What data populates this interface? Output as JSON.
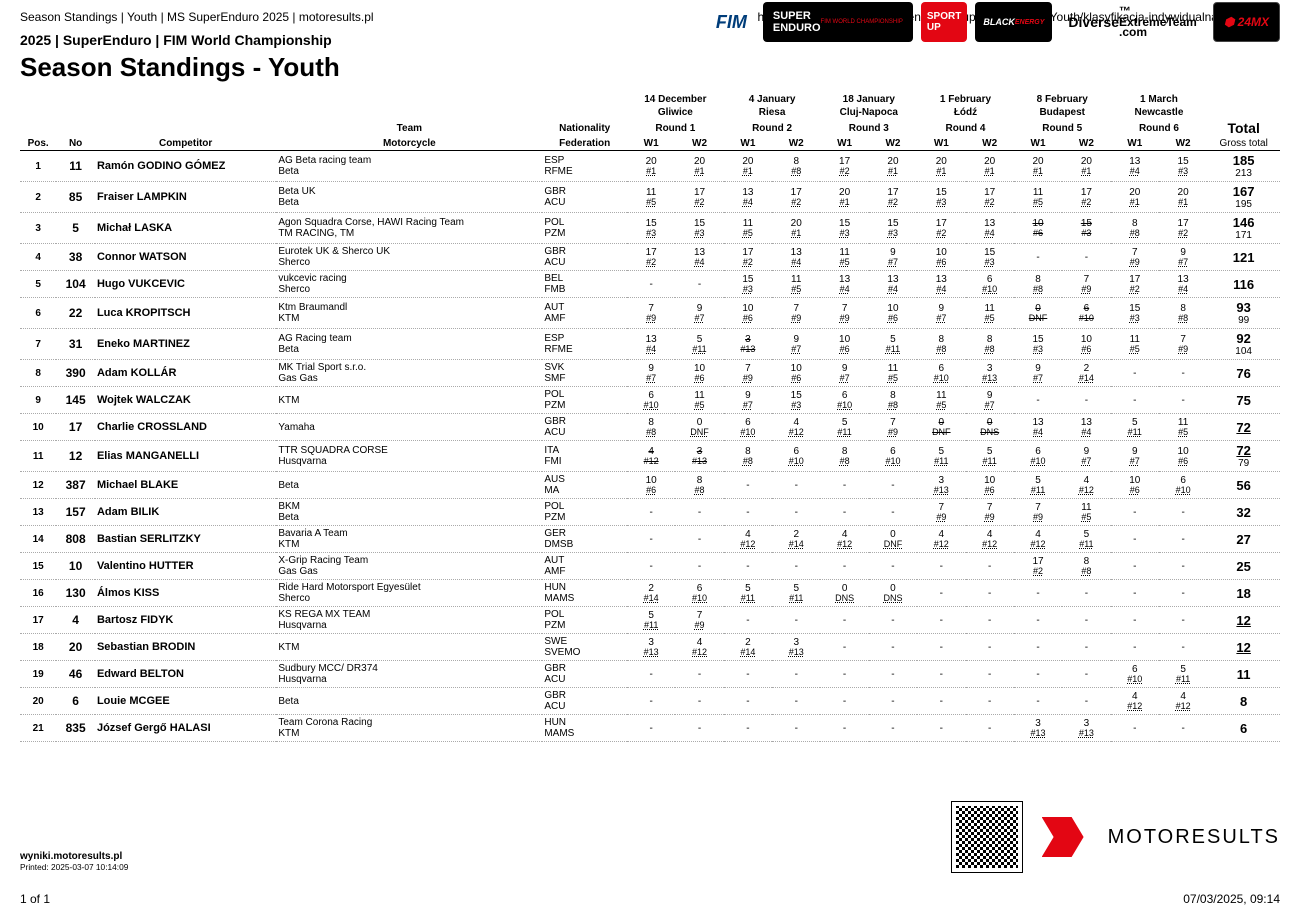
{
  "top": {
    "left": "Season Standings | Youth | MS SuperEnduro 2025 | motoresults.pl",
    "right": "https://wyniki.motoresults.pl/en/2025/SuperEnduro/MS/Youth/klasyfikacja-indywidualna-sezonu/z..."
  },
  "subtitle": "2025 | SuperEnduro | FIM World Championship",
  "title": "Season Standings - Youth",
  "logos": [
    "FIM",
    "SUPER ENDURO",
    "SPORT UP",
    "BLACK ENERGY",
    "Diverse ExtremeTeam .com",
    "24MX"
  ],
  "rounds": [
    {
      "date": "14 December",
      "city": "Gliwice",
      "label": "Round 1"
    },
    {
      "date": "4 January",
      "city": "Riesa",
      "label": "Round 2"
    },
    {
      "date": "18 January",
      "city": "Cluj-Napoca",
      "label": "Round 3"
    },
    {
      "date": "1 February",
      "city": "Łódź",
      "label": "Round 4"
    },
    {
      "date": "8 February",
      "city": "Budapest",
      "label": "Round 5"
    },
    {
      "date": "1 March",
      "city": "Newcastle",
      "label": "Round 6"
    }
  ],
  "headers": {
    "pos": "Pos.",
    "no": "No",
    "comp": "Competitor",
    "team": "Team",
    "moto": "Motorcycle",
    "nat": "Nationality",
    "fed": "Federation",
    "w1": "W1",
    "w2": "W2",
    "total": "Total",
    "gross": "Gross total"
  },
  "rows": [
    {
      "pos": 1,
      "no": 11,
      "name": "Ramón GODINO GÓMEZ",
      "team": "AG Beta racing team",
      "moto": "Beta",
      "nat": "ESP",
      "fed": "RFME",
      "r": [
        [
          "20",
          "#1",
          "20",
          "#1"
        ],
        [
          "20",
          "#1",
          "8",
          "#8"
        ],
        [
          "17",
          "#2",
          "20",
          "#1"
        ],
        [
          "20",
          "#1",
          "20",
          "#1"
        ],
        [
          "20",
          "#1",
          "20",
          "#1"
        ],
        [
          "13",
          "#4",
          "15",
          "#3"
        ]
      ],
      "total": "185",
      "gross": "213"
    },
    {
      "pos": 2,
      "no": 85,
      "name": "Fraiser LAMPKIN",
      "team": "Beta UK",
      "moto": "Beta",
      "nat": "GBR",
      "fed": "ACU",
      "r": [
        [
          "11",
          "#5",
          "17",
          "#2"
        ],
        [
          "13",
          "#4",
          "17",
          "#2"
        ],
        [
          "20",
          "#1",
          "17",
          "#2"
        ],
        [
          "15",
          "#3",
          "17",
          "#2"
        ],
        [
          "11",
          "#5",
          "17",
          "#2"
        ],
        [
          "20",
          "#1",
          "20",
          "#1"
        ]
      ],
      "total": "167",
      "gross": "195"
    },
    {
      "pos": 3,
      "no": 5,
      "name": "Michał LASKA",
      "team": "Agon Squadra Corse, HAWI Racing Team",
      "moto": "TM RACING, TM",
      "nat": "POL",
      "fed": "PZM",
      "r": [
        [
          "15",
          "#3",
          "15",
          "#3"
        ],
        [
          "11",
          "#5",
          "20",
          "#1"
        ],
        [
          "15",
          "#3",
          "15",
          "#3"
        ],
        [
          "17",
          "#2",
          "13",
          "#4"
        ],
        [
          "10",
          "#6",
          "15",
          "#3",
          true,
          true
        ],
        [
          "8",
          "#8",
          "17",
          "#2"
        ]
      ],
      "total": "146",
      "gross": "171"
    },
    {
      "pos": 4,
      "no": 38,
      "name": "Connor WATSON",
      "team": "Eurotek UK & Sherco UK",
      "moto": "Sherco",
      "nat": "GBR",
      "fed": "ACU",
      "r": [
        [
          "17",
          "#2",
          "13",
          "#4"
        ],
        [
          "17",
          "#2",
          "13",
          "#4"
        ],
        [
          "11",
          "#5",
          "9",
          "#7"
        ],
        [
          "10",
          "#6",
          "15",
          "#3"
        ],
        [
          "-",
          "",
          "-",
          ""
        ],
        [
          "7",
          "#9",
          "9",
          "#7"
        ]
      ],
      "total": "121",
      "gross": ""
    },
    {
      "pos": 5,
      "no": 104,
      "name": "Hugo VUKCEVIC",
      "team": "vukcevic racing",
      "moto": "Sherco",
      "nat": "BEL",
      "fed": "FMB",
      "r": [
        [
          "-",
          "",
          "-",
          ""
        ],
        [
          "15",
          "#3",
          "11",
          "#5"
        ],
        [
          "13",
          "#4",
          "13",
          "#4"
        ],
        [
          "13",
          "#4",
          "6",
          "#10"
        ],
        [
          "8",
          "#8",
          "7",
          "#9"
        ],
        [
          "17",
          "#2",
          "13",
          "#4"
        ]
      ],
      "total": "116",
      "gross": ""
    },
    {
      "pos": 6,
      "no": 22,
      "name": "Luca KROPITSCH",
      "team": "Ktm Braumandl",
      "moto": "KTM",
      "nat": "AUT",
      "fed": "AMF",
      "r": [
        [
          "7",
          "#9",
          "9",
          "#7"
        ],
        [
          "10",
          "#6",
          "7",
          "#9"
        ],
        [
          "7",
          "#9",
          "10",
          "#6"
        ],
        [
          "9",
          "#7",
          "11",
          "#5"
        ],
        [
          "0",
          "DNF",
          "6",
          "#10",
          true,
          true
        ],
        [
          "15",
          "#3",
          "8",
          "#8"
        ]
      ],
      "total": "93",
      "gross": "99"
    },
    {
      "pos": 7,
      "no": 31,
      "name": "Eneko MARTINEZ",
      "team": "AG Racing team",
      "moto": "Beta",
      "nat": "ESP",
      "fed": "RFME",
      "r": [
        [
          "13",
          "#4",
          "5",
          "#11"
        ],
        [
          "3",
          "#13",
          "9",
          "#7",
          true,
          false
        ],
        [
          "10",
          "#6",
          "5",
          "#11"
        ],
        [
          "8",
          "#8",
          "8",
          "#8"
        ],
        [
          "15",
          "#3",
          "10",
          "#6"
        ],
        [
          "11",
          "#5",
          "7",
          "#9"
        ]
      ],
      "total": "92",
      "gross": "104"
    },
    {
      "pos": 8,
      "no": 390,
      "name": "Adam KOLLÁR",
      "team": "MK Trial Sport s.r.o.",
      "moto": "Gas Gas",
      "nat": "SVK",
      "fed": "SMF",
      "r": [
        [
          "9",
          "#7",
          "10",
          "#6"
        ],
        [
          "7",
          "#9",
          "10",
          "#6"
        ],
        [
          "9",
          "#7",
          "11",
          "#5"
        ],
        [
          "6",
          "#10",
          "3",
          "#13"
        ],
        [
          "9",
          "#7",
          "2",
          "#14"
        ],
        [
          "-",
          "",
          "-",
          ""
        ]
      ],
      "total": "76",
      "gross": ""
    },
    {
      "pos": 9,
      "no": 145,
      "name": "Wojtek WALCZAK",
      "team": "",
      "moto": "KTM",
      "nat": "POL",
      "fed": "PZM",
      "r": [
        [
          "6",
          "#10",
          "11",
          "#5"
        ],
        [
          "9",
          "#7",
          "15",
          "#3"
        ],
        [
          "6",
          "#10",
          "8",
          "#8"
        ],
        [
          "11",
          "#5",
          "9",
          "#7"
        ],
        [
          "-",
          "",
          "-",
          ""
        ],
        [
          "-",
          "",
          "-",
          ""
        ]
      ],
      "total": "75",
      "gross": ""
    },
    {
      "pos": 10,
      "no": 17,
      "name": "Charlie CROSSLAND",
      "team": "",
      "moto": "Yamaha",
      "nat": "GBR",
      "fed": "ACU",
      "r": [
        [
          "8",
          "#8",
          "0",
          "DNF"
        ],
        [
          "6",
          "#10",
          "4",
          "#12"
        ],
        [
          "5",
          "#11",
          "7",
          "#9"
        ],
        [
          "0",
          "DNF",
          "0",
          "DNS",
          true,
          true
        ],
        [
          "13",
          "#4",
          "13",
          "#4"
        ],
        [
          "5",
          "#11",
          "11",
          "#5"
        ]
      ],
      "total": "72",
      "gross": "",
      "tund": true
    },
    {
      "pos": 11,
      "no": 12,
      "name": "Elias MANGANELLI",
      "team": "TTR SQUADRA CORSE",
      "moto": "Husqvarna",
      "nat": "ITA",
      "fed": "FMI",
      "r": [
        [
          "4",
          "#12",
          "3",
          "#13",
          true,
          true
        ],
        [
          "8",
          "#8",
          "6",
          "#10"
        ],
        [
          "8",
          "#8",
          "6",
          "#10"
        ],
        [
          "5",
          "#11",
          "5",
          "#11"
        ],
        [
          "6",
          "#10",
          "9",
          "#7"
        ],
        [
          "9",
          "#7",
          "10",
          "#6"
        ]
      ],
      "total": "72",
      "gross": "79",
      "tund": true
    },
    {
      "pos": 12,
      "no": 387,
      "name": "Michael BLAKE",
      "team": "",
      "moto": "Beta",
      "nat": "AUS",
      "fed": "MA",
      "r": [
        [
          "10",
          "#6",
          "8",
          "#8"
        ],
        [
          "-",
          "",
          "-",
          ""
        ],
        [
          "-",
          "",
          "-",
          ""
        ],
        [
          "3",
          "#13",
          "10",
          "#6"
        ],
        [
          "5",
          "#11",
          "4",
          "#12"
        ],
        [
          "10",
          "#6",
          "6",
          "#10"
        ]
      ],
      "total": "56",
      "gross": ""
    },
    {
      "pos": 13,
      "no": 157,
      "name": "Adam BILIK",
      "team": "BKM",
      "moto": "Beta",
      "nat": "POL",
      "fed": "PZM",
      "r": [
        [
          "-",
          "",
          "-",
          ""
        ],
        [
          "-",
          "",
          "-",
          ""
        ],
        [
          "-",
          "",
          "-",
          ""
        ],
        [
          "7",
          "#9",
          "7",
          "#9"
        ],
        [
          "7",
          "#9",
          "11",
          "#5"
        ],
        [
          "-",
          "",
          "-",
          ""
        ]
      ],
      "total": "32",
      "gross": ""
    },
    {
      "pos": 14,
      "no": 808,
      "name": "Bastian SERLITZKY",
      "team": "Bavaria A Team",
      "moto": "KTM",
      "nat": "GER",
      "fed": "DMSB",
      "r": [
        [
          "-",
          "",
          "-",
          ""
        ],
        [
          "4",
          "#12",
          "2",
          "#14"
        ],
        [
          "4",
          "#12",
          "0",
          "DNF"
        ],
        [
          "4",
          "#12",
          "4",
          "#12"
        ],
        [
          "4",
          "#12",
          "5",
          "#11"
        ],
        [
          "-",
          "",
          "-",
          ""
        ]
      ],
      "total": "27",
      "gross": ""
    },
    {
      "pos": 15,
      "no": 10,
      "name": "Valentino HUTTER",
      "team": "X-Grip Racing Team",
      "moto": "Gas Gas",
      "nat": "AUT",
      "fed": "AMF",
      "r": [
        [
          "-",
          "",
          "-",
          ""
        ],
        [
          "-",
          "",
          "-",
          ""
        ],
        [
          "-",
          "",
          "-",
          ""
        ],
        [
          "-",
          "",
          "-",
          ""
        ],
        [
          "17",
          "#2",
          "8",
          "#8"
        ],
        [
          "-",
          "",
          "-",
          ""
        ]
      ],
      "total": "25",
      "gross": ""
    },
    {
      "pos": 16,
      "no": 130,
      "name": "Álmos KISS",
      "team": "Ride Hard Motorsport Egyesület",
      "moto": "Sherco",
      "nat": "HUN",
      "fed": "MAMS",
      "r": [
        [
          "2",
          "#14",
          "6",
          "#10"
        ],
        [
          "5",
          "#11",
          "5",
          "#11"
        ],
        [
          "0",
          "DNS",
          "0",
          "DNS"
        ],
        [
          "-",
          "",
          "-",
          ""
        ],
        [
          "-",
          "",
          "-",
          ""
        ],
        [
          "-",
          "",
          "-",
          ""
        ]
      ],
      "total": "18",
      "gross": ""
    },
    {
      "pos": 17,
      "no": 4,
      "name": "Bartosz FIDYK",
      "team": "KS REGA MX TEAM",
      "moto": "Husqvarna",
      "nat": "POL",
      "fed": "PZM",
      "r": [
        [
          "5",
          "#11",
          "7",
          "#9"
        ],
        [
          "-",
          "",
          "-",
          ""
        ],
        [
          "-",
          "",
          "-",
          ""
        ],
        [
          "-",
          "",
          "-",
          ""
        ],
        [
          "-",
          "",
          "-",
          ""
        ],
        [
          "-",
          "",
          "-",
          ""
        ]
      ],
      "total": "12",
      "gross": "",
      "tund": true
    },
    {
      "pos": 18,
      "no": 20,
      "name": "Sebastian BRODIN",
      "team": "",
      "moto": "KTM",
      "nat": "SWE",
      "fed": "SVEMO",
      "r": [
        [
          "3",
          "#13",
          "4",
          "#12"
        ],
        [
          "2",
          "#14",
          "3",
          "#13"
        ],
        [
          "-",
          "",
          "-",
          ""
        ],
        [
          "-",
          "",
          "-",
          ""
        ],
        [
          "-",
          "",
          "-",
          ""
        ],
        [
          "-",
          "",
          "-",
          ""
        ]
      ],
      "total": "12",
      "gross": "",
      "tund": true
    },
    {
      "pos": 19,
      "no": 46,
      "name": "Edward BELTON",
      "team": "Sudbury MCC/ DR374",
      "moto": "Husqvarna",
      "nat": "GBR",
      "fed": "ACU",
      "r": [
        [
          "-",
          "",
          "-",
          ""
        ],
        [
          "-",
          "",
          "-",
          ""
        ],
        [
          "-",
          "",
          "-",
          ""
        ],
        [
          "-",
          "",
          "-",
          ""
        ],
        [
          "-",
          "",
          "-",
          ""
        ],
        [
          "6",
          "#10",
          "5",
          "#11"
        ]
      ],
      "total": "11",
      "gross": ""
    },
    {
      "pos": 20,
      "no": 6,
      "name": "Louie MCGEE",
      "team": "",
      "moto": "Beta",
      "nat": "GBR",
      "fed": "ACU",
      "r": [
        [
          "-",
          "",
          "-",
          ""
        ],
        [
          "-",
          "",
          "-",
          ""
        ],
        [
          "-",
          "",
          "-",
          ""
        ],
        [
          "-",
          "",
          "-",
          ""
        ],
        [
          "-",
          "",
          "-",
          ""
        ],
        [
          "4",
          "#12",
          "4",
          "#12"
        ]
      ],
      "total": "8",
      "gross": ""
    },
    {
      "pos": 21,
      "no": 835,
      "name": "József Gergő HALASI",
      "team": "Team Corona Racing",
      "moto": "KTM",
      "nat": "HUN",
      "fed": "MAMS",
      "r": [
        [
          "-",
          "",
          "-",
          ""
        ],
        [
          "-",
          "",
          "-",
          ""
        ],
        [
          "-",
          "",
          "-",
          ""
        ],
        [
          "-",
          "",
          "-",
          ""
        ],
        [
          "3",
          "#13",
          "3",
          "#13"
        ],
        [
          "-",
          "",
          "-",
          ""
        ]
      ],
      "total": "6",
      "gross": ""
    }
  ],
  "footer": {
    "site": "wyniki.motoresults.pl",
    "printed": "Printed: 2025-03-07 10:14:09",
    "brand": "MOTORESULTS"
  },
  "bottom": {
    "left": "1 of 1",
    "right": "07/03/2025, 09:14"
  }
}
